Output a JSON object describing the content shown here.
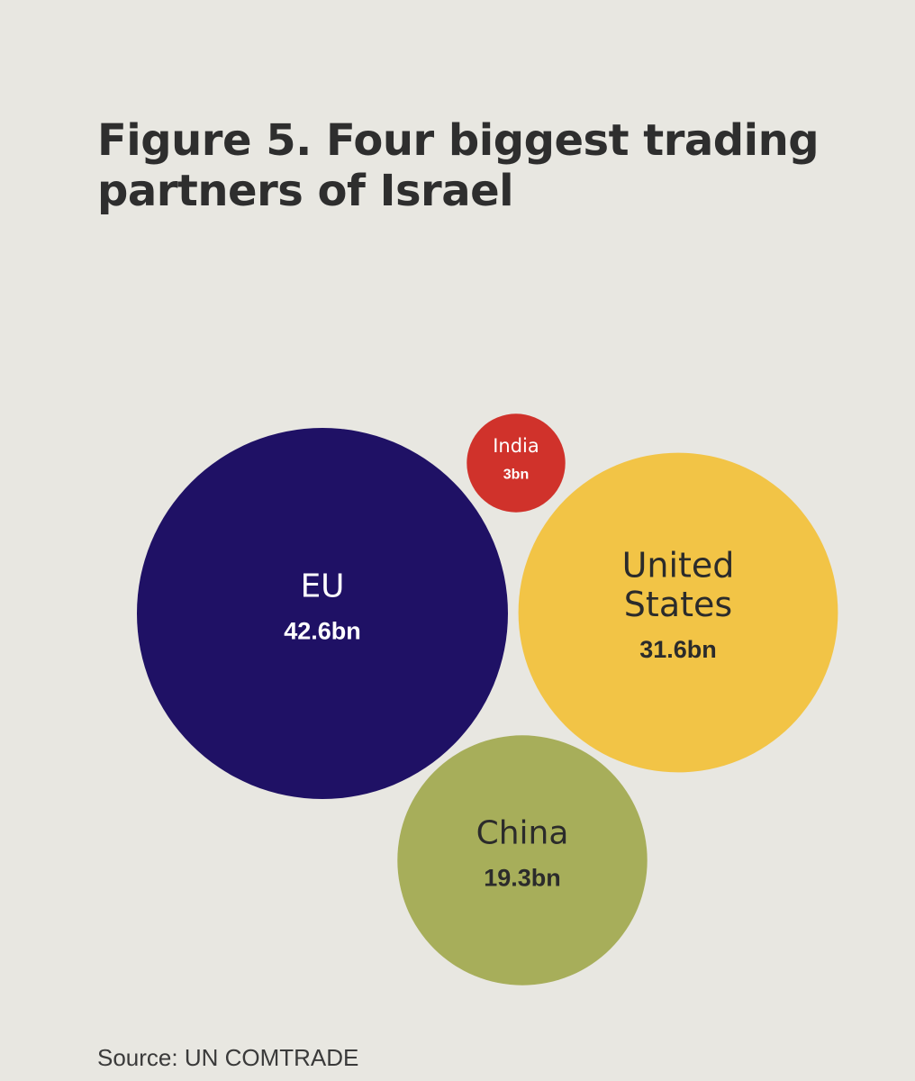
{
  "title": "Figure 5. Four biggest trading partners of Israel",
  "source": "Source: UN COMTRADE",
  "chart_data": {
    "type": "bubble",
    "title": "Figure 5. Four biggest trading partners of Israel",
    "source": "Source: UN COMTRADE",
    "series": [
      {
        "name": "EU",
        "label_lines": [
          "EU"
        ],
        "value": 42.6,
        "value_label": "42.6bn",
        "color": "#1f1165",
        "text_color": "#ffffff"
      },
      {
        "name": "United States",
        "label_lines": [
          "United",
          "States"
        ],
        "value": 31.6,
        "value_label": "31.6bn",
        "color": "#f2c446",
        "text_color": "#2b2b2b"
      },
      {
        "name": "China",
        "label_lines": [
          "China"
        ],
        "value": 19.3,
        "value_label": "19.3bn",
        "color": "#a7ae5a",
        "text_color": "#2b2b2b"
      },
      {
        "name": "India",
        "label_lines": [
          "India"
        ],
        "value": 3,
        "value_label": "3bn",
        "color": "#d0322b",
        "text_color": "#ffffff"
      }
    ]
  }
}
